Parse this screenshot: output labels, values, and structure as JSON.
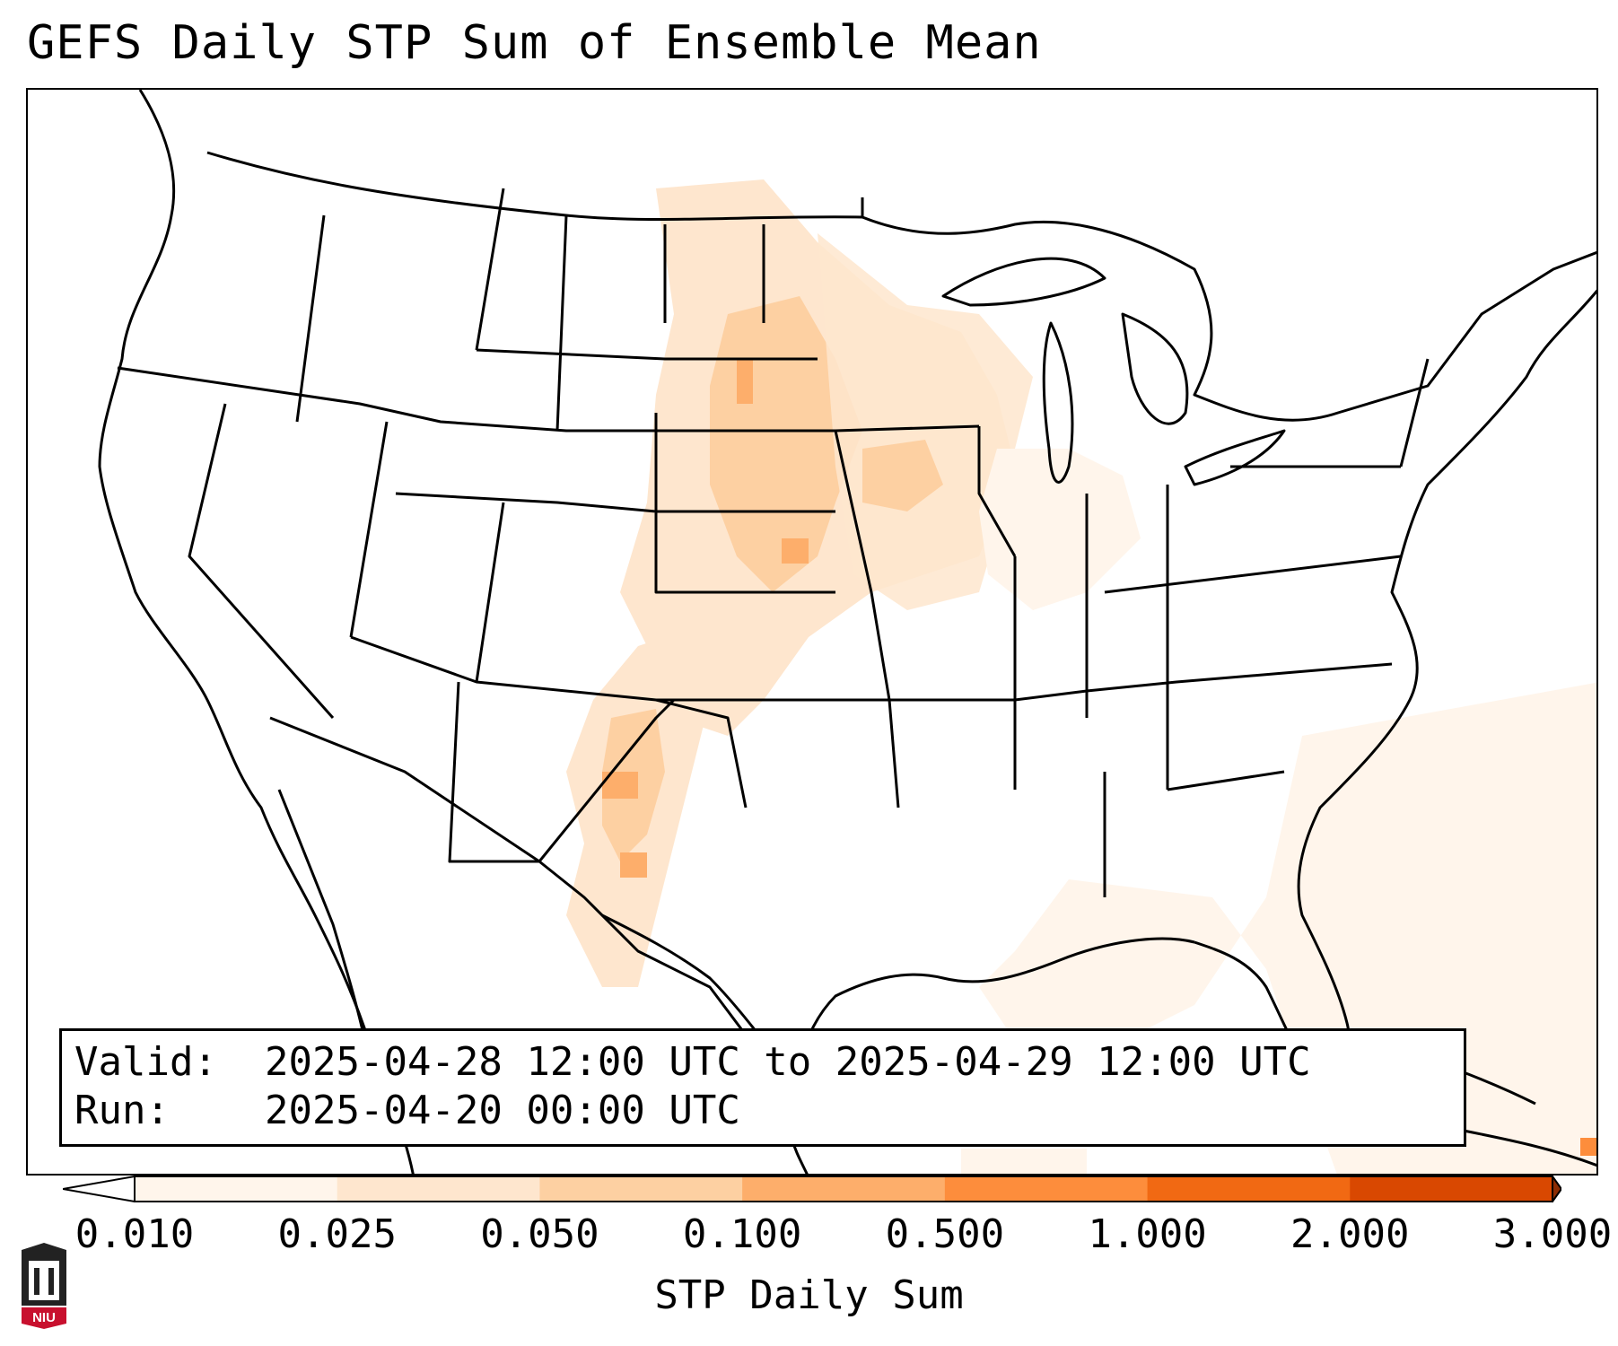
{
  "title": "GEFS Daily STP Sum of Ensemble Mean",
  "info": {
    "valid_key": "Valid:",
    "valid_value": "2025-04-28 12:00 UTC to 2025-04-29 12:00 UTC",
    "run_key": "Run:",
    "run_value": "2025-04-20 00:00 UTC"
  },
  "colorbar": {
    "label": "STP Daily Sum",
    "ticks": [
      "0.010",
      "0.025",
      "0.050",
      "0.100",
      "0.500",
      "1.000",
      "2.000",
      "3.000"
    ],
    "colors": [
      "#fff5eb",
      "#fee6ce",
      "#fdd0a2",
      "#fdae6b",
      "#fd8d3c",
      "#f16913",
      "#d94801"
    ],
    "under_color": "#ffffff",
    "over_color": "#8c2d04"
  },
  "logo": {
    "icon": "niu-logo-icon",
    "text": "NIU",
    "color": "#c8102e"
  }
}
